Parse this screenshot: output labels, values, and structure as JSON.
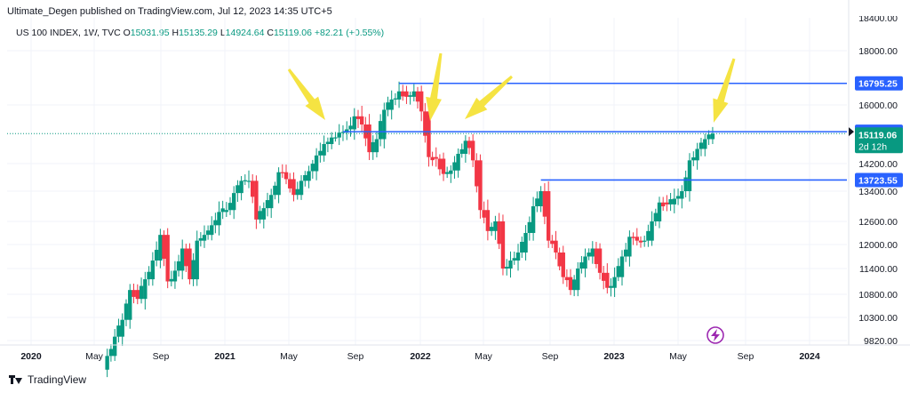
{
  "header": {
    "text": "Ultimate_Degen published on TradingView.com, Jul 12, 2023 14:35 UTC+5"
  },
  "symbol": {
    "name": "US 100 INDEX, 1W, TVC",
    "o_label": "O",
    "o_value": "15031.95",
    "h_label": "H",
    "h_value": "15135.29",
    "l_label": "L",
    "l_value": "14924.64",
    "c_label": "C",
    "c_value": "15119.06",
    "change": "+82.21 (+0.55%)"
  },
  "footer": {
    "brand": "TradingView"
  },
  "colors": {
    "up": "#089981",
    "down": "#f23645",
    "line": "#2962ff",
    "arrow": "#f5e342",
    "current": "#089981"
  },
  "chart_data": {
    "type": "candlestick",
    "x_tick_labels": [
      "2020",
      "May",
      "Sep",
      "2021",
      "May",
      "Sep",
      "2022",
      "May",
      "Sep",
      "2023",
      "May",
      "Sep",
      "2024"
    ],
    "y_tick_labels": [
      "18000.00",
      "16000.00",
      "14200.00",
      "13400.00",
      "12600.00",
      "12000.00",
      "11400.00",
      "10800.00",
      "10300.00",
      "9820.00"
    ],
    "y_top_partial": "18400.00",
    "y_range": [
      9600,
      18700
    ],
    "horizontal_levels": [
      {
        "value": 16795.25,
        "label": "16795.25",
        "start_date": "2021-11-22"
      },
      {
        "value": 15178.33,
        "label": "15178.33",
        "start_date": "2021-08-09"
      },
      {
        "value": 13723.55,
        "label": "13723.55",
        "start_date": "2022-08-15"
      }
    ],
    "current_price": {
      "value": 15119.06,
      "label": "15119.06",
      "countdown": "2d 12h"
    },
    "annotation_arrows": 4,
    "lightning_icon": true,
    "closes": [
      {
        "date": "2020-05-25",
        "close": 9500
      },
      {
        "date": "2020-06-08",
        "close": 9900
      },
      {
        "date": "2020-06-22",
        "close": 10250
      },
      {
        "date": "2020-07-06",
        "close": 10900
      },
      {
        "date": "2020-07-20",
        "close": 10700
      },
      {
        "date": "2020-08-03",
        "close": 11150
      },
      {
        "date": "2020-08-17",
        "close": 11600
      },
      {
        "date": "2020-08-31",
        "close": 12250
      },
      {
        "date": "2020-09-14",
        "close": 11100
      },
      {
        "date": "2020-09-28",
        "close": 11350
      },
      {
        "date": "2020-10-12",
        "close": 11900
      },
      {
        "date": "2020-10-26",
        "close": 11150
      },
      {
        "date": "2020-11-09",
        "close": 12100
      },
      {
        "date": "2020-11-23",
        "close": 12250
      },
      {
        "date": "2020-12-07",
        "close": 12500
      },
      {
        "date": "2020-12-21",
        "close": 12850
      },
      {
        "date": "2021-01-04",
        "close": 12900
      },
      {
        "date": "2021-01-18",
        "close": 13350
      },
      {
        "date": "2021-02-01",
        "close": 13700
      },
      {
        "date": "2021-02-15",
        "close": 13700
      },
      {
        "date": "2021-03-01",
        "close": 12650
      },
      {
        "date": "2021-03-15",
        "close": 12950
      },
      {
        "date": "2021-03-29",
        "close": 13300
      },
      {
        "date": "2021-04-12",
        "close": 13950
      },
      {
        "date": "2021-04-26",
        "close": 13750
      },
      {
        "date": "2021-05-10",
        "close": 13300
      },
      {
        "date": "2021-05-24",
        "close": 13700
      },
      {
        "date": "2021-06-07",
        "close": 13980
      },
      {
        "date": "2021-06-21",
        "close": 14450
      },
      {
        "date": "2021-07-05",
        "close": 14800
      },
      {
        "date": "2021-07-19",
        "close": 15000
      },
      {
        "date": "2021-08-02",
        "close": 15150
      },
      {
        "date": "2021-08-16",
        "close": 15250
      },
      {
        "date": "2021-08-30",
        "close": 15650
      },
      {
        "date": "2021-09-13",
        "close": 15400
      },
      {
        "date": "2021-09-27",
        "close": 14550
      },
      {
        "date": "2021-10-11",
        "close": 14950
      },
      {
        "date": "2021-10-25",
        "close": 15850
      },
      {
        "date": "2021-11-08",
        "close": 16200
      },
      {
        "date": "2021-11-22",
        "close": 16500
      },
      {
        "date": "2021-12-06",
        "close": 16300
      },
      {
        "date": "2021-12-20",
        "close": 16500
      },
      {
        "date": "2022-01-03",
        "close": 15800
      },
      {
        "date": "2022-01-17",
        "close": 14400
      },
      {
        "date": "2022-01-31",
        "close": 14350
      },
      {
        "date": "2022-02-14",
        "close": 13900
      },
      {
        "date": "2022-02-28",
        "close": 14000
      },
      {
        "date": "2022-03-14",
        "close": 14500
      },
      {
        "date": "2022-03-28",
        "close": 14900
      },
      {
        "date": "2022-04-11",
        "close": 14300
      },
      {
        "date": "2022-04-25",
        "close": 12900
      },
      {
        "date": "2022-05-09",
        "close": 12350
      },
      {
        "date": "2022-05-23",
        "close": 12600
      },
      {
        "date": "2022-06-06",
        "close": 11400
      },
      {
        "date": "2022-06-20",
        "close": 11600
      },
      {
        "date": "2022-07-04",
        "close": 11800
      },
      {
        "date": "2022-07-18",
        "close": 12300
      },
      {
        "date": "2022-08-01",
        "close": 13000
      },
      {
        "date": "2022-08-15",
        "close": 13400
      },
      {
        "date": "2022-08-29",
        "close": 12100
      },
      {
        "date": "2022-09-12",
        "close": 11800
      },
      {
        "date": "2022-09-26",
        "close": 11200
      },
      {
        "date": "2022-10-10",
        "close": 10900
      },
      {
        "date": "2022-10-24",
        "close": 11400
      },
      {
        "date": "2022-11-07",
        "close": 11700
      },
      {
        "date": "2022-11-21",
        "close": 11900
      },
      {
        "date": "2022-12-05",
        "close": 11300
      },
      {
        "date": "2022-12-19",
        "close": 10950
      },
      {
        "date": "2023-01-02",
        "close": 11200
      },
      {
        "date": "2023-01-16",
        "close": 11700
      },
      {
        "date": "2023-01-30",
        "close": 12200
      },
      {
        "date": "2023-02-13",
        "close": 12100
      },
      {
        "date": "2023-02-27",
        "close": 12100
      },
      {
        "date": "2023-03-13",
        "close": 12600
      },
      {
        "date": "2023-03-27",
        "close": 13100
      },
      {
        "date": "2023-04-10",
        "close": 13050
      },
      {
        "date": "2023-04-24",
        "close": 13200
      },
      {
        "date": "2023-05-08",
        "close": 13400
      },
      {
        "date": "2023-05-22",
        "close": 14300
      },
      {
        "date": "2023-06-05",
        "close": 14650
      },
      {
        "date": "2023-06-19",
        "close": 14950
      },
      {
        "date": "2023-07-03",
        "close": 15119.06
      }
    ]
  }
}
